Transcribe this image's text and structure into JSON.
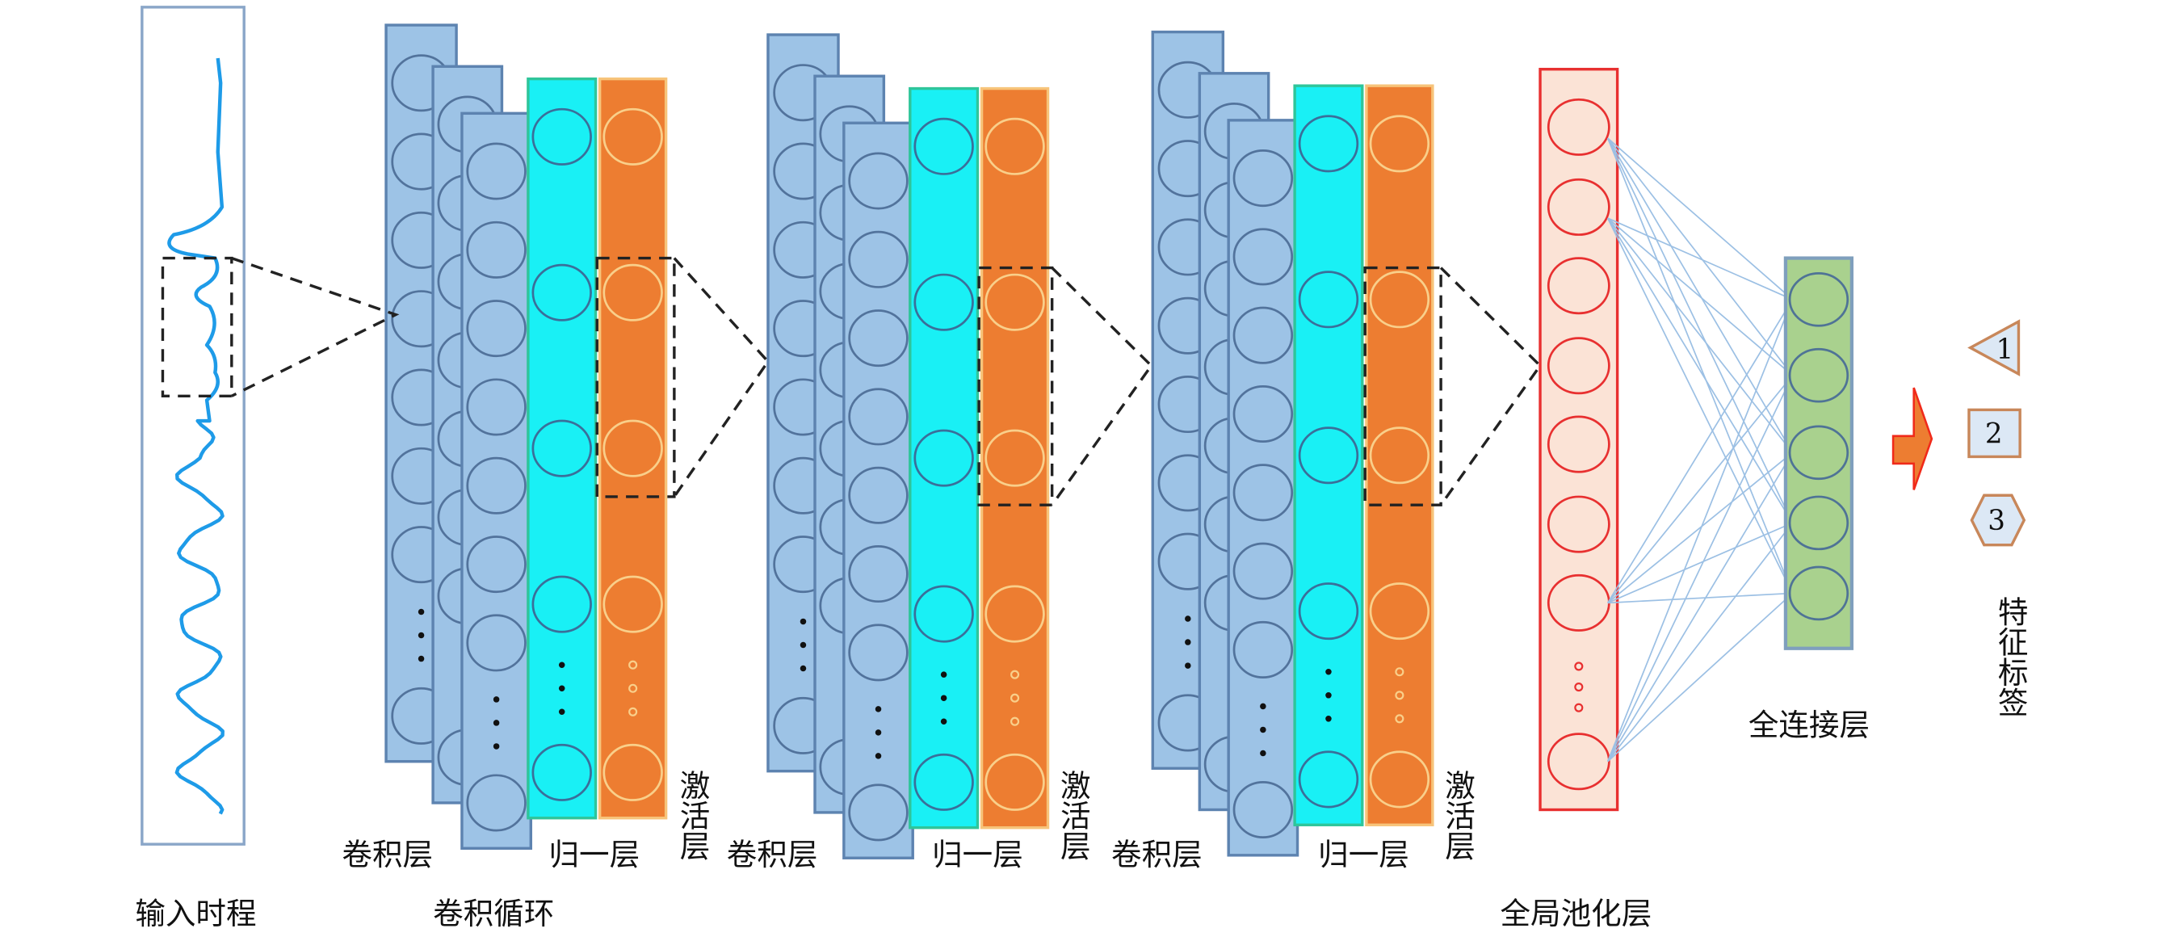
{
  "input": {
    "label": "输入时程"
  },
  "conv_loop": {
    "label": "卷积循环"
  },
  "blocks": [
    {
      "conv_label": "卷积层",
      "norm_label": "归一层",
      "act_label": "激活层"
    },
    {
      "conv_label": "卷积层",
      "norm_label": "归一层",
      "act_label": "激活层"
    },
    {
      "conv_label": "卷积层",
      "norm_label": "归一层",
      "act_label": "激活层"
    }
  ],
  "pooling": {
    "label": "全局池化层"
  },
  "fully_connected": {
    "label": "全连接层"
  },
  "output": {
    "label": "特征标签",
    "classes": [
      {
        "shape": "triangle",
        "text": "1"
      },
      {
        "shape": "square",
        "text": "2"
      },
      {
        "shape": "hexagon",
        "text": "3"
      }
    ]
  },
  "colors": {
    "conv": "#9dc3e6",
    "norm": "#19f0f5",
    "activation": "#ed7d31",
    "pooling": "#fbe3d6",
    "pooling_border": "#e83030",
    "fc": "#a9d18e",
    "signal": "#1e9be8"
  }
}
